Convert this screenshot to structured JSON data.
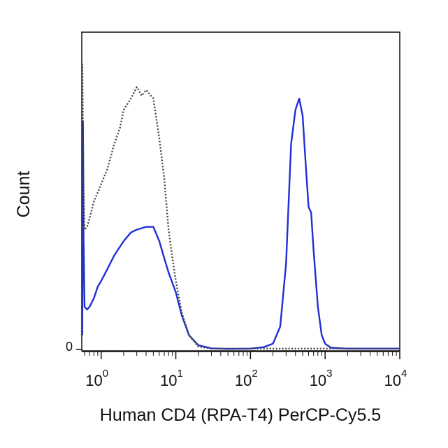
{
  "chart_data": {
    "type": "histogram",
    "xlabel": "Human CD4 (RPA-T4) PerCP-Cy5.5",
    "ylabel": "Count",
    "xscale": "log",
    "xlim": [
      0.55,
      10000
    ],
    "ylim": [
      0,
      100
    ],
    "grid": false,
    "legend": "none",
    "x_ticks": [
      {
        "value": 1,
        "base": "10",
        "exp": "0"
      },
      {
        "value": 10,
        "base": "10",
        "exp": "1"
      },
      {
        "value": 100,
        "base": "10",
        "exp": "2"
      },
      {
        "value": 1000,
        "base": "10",
        "exp": "3"
      },
      {
        "value": 10000,
        "base": "10",
        "exp": "4"
      }
    ],
    "y_ticks": [
      {
        "value": 0,
        "label": "0"
      }
    ],
    "series": [
      {
        "color": "#1f2fd6",
        "style": "solid",
        "points": [
          [
            0.56,
            5
          ],
          [
            0.57,
            80
          ],
          [
            0.58,
            40
          ],
          [
            0.6,
            15
          ],
          [
            0.65,
            14
          ],
          [
            0.7,
            15
          ],
          [
            0.8,
            18
          ],
          [
            0.9,
            22
          ],
          [
            1.0,
            24
          ],
          [
            1.2,
            28
          ],
          [
            1.5,
            33
          ],
          [
            2.0,
            38
          ],
          [
            2.5,
            41
          ],
          [
            3.0,
            42
          ],
          [
            4.0,
            43
          ],
          [
            5.0,
            43
          ],
          [
            6.0,
            38
          ],
          [
            7.0,
            32
          ],
          [
            8.0,
            27
          ],
          [
            10,
            20
          ],
          [
            12,
            12
          ],
          [
            15,
            5
          ],
          [
            20,
            1.5
          ],
          [
            30,
            0.4
          ],
          [
            50,
            0.2
          ],
          [
            100,
            0.3
          ],
          [
            150,
            0.8
          ],
          [
            200,
            2
          ],
          [
            250,
            8
          ],
          [
            300,
            30
          ],
          [
            350,
            72
          ],
          [
            400,
            84
          ],
          [
            450,
            88
          ],
          [
            500,
            82
          ],
          [
            550,
            65
          ],
          [
            600,
            50
          ],
          [
            650,
            48
          ],
          [
            700,
            35
          ],
          [
            800,
            15
          ],
          [
            900,
            5
          ],
          [
            1000,
            2
          ],
          [
            1200,
            0.6
          ],
          [
            2000,
            0.3
          ],
          [
            10000,
            0.3
          ]
        ]
      },
      {
        "color": "#444444",
        "style": "dotted",
        "points": [
          [
            0.55,
            5
          ],
          [
            0.56,
            100
          ],
          [
            0.58,
            60
          ],
          [
            0.6,
            42
          ],
          [
            0.65,
            43
          ],
          [
            0.7,
            46
          ],
          [
            0.8,
            52
          ],
          [
            0.9,
            55
          ],
          [
            1.0,
            58
          ],
          [
            1.2,
            63
          ],
          [
            1.5,
            72
          ],
          [
            1.8,
            78
          ],
          [
            2.0,
            84
          ],
          [
            2.5,
            88
          ],
          [
            3.0,
            92
          ],
          [
            3.5,
            89
          ],
          [
            4.0,
            91
          ],
          [
            5.0,
            88
          ],
          [
            6.0,
            74
          ],
          [
            7.0,
            60
          ],
          [
            8.0,
            42
          ],
          [
            9.0,
            32
          ],
          [
            10,
            24
          ],
          [
            12,
            13
          ],
          [
            15,
            5
          ],
          [
            20,
            1
          ],
          [
            30,
            0.3
          ],
          [
            10000,
            0.3
          ]
        ]
      }
    ]
  }
}
